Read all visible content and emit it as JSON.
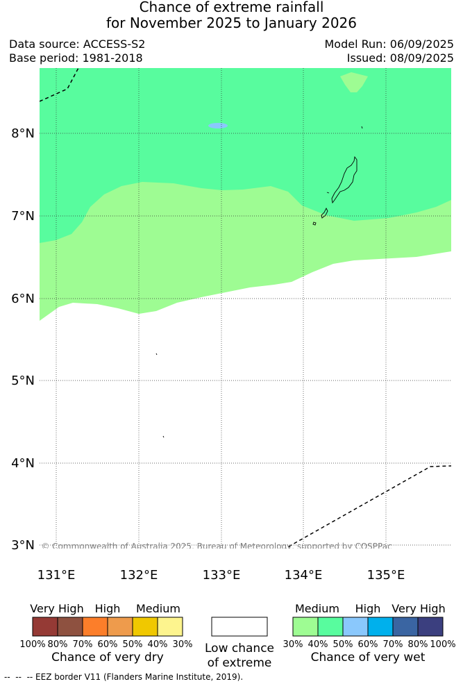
{
  "title": {
    "line1": "Chance of extreme rainfall",
    "line2": "for November 2025 to January 2026"
  },
  "meta": {
    "data_source": "Data source: ACCESS-S2",
    "base_period": "Base period: 1981-2018",
    "model_run": "Model Run: 06/09/2025",
    "issued": "Issued: 08/09/2025"
  },
  "map": {
    "lat_labels": [
      "8°N",
      "7°N",
      "6°N",
      "5°N",
      "4°N",
      "3°N"
    ],
    "lon_labels": [
      "131°E",
      "132°E",
      "133°E",
      "134°E",
      "135°E"
    ],
    "copyright": "© Commonwealth of Australia 2025, Bureau of Meteorology, supported by COSPPac",
    "colors": {
      "wet_40_50": "#58fc9e",
      "wet_30_40": "#9efc93",
      "wet_50_60": "#8ac8fc"
    }
  },
  "legend": {
    "dry": {
      "categories": [
        "Very High",
        "High",
        "Medium"
      ],
      "colors": [
        "#953a35",
        "#8e5140",
        "#fc7e2a",
        "#ee9b4c",
        "#f0c800",
        "#fdf48e"
      ],
      "ticks": [
        "100%",
        "80%",
        "70%",
        "60%",
        "50%",
        "40%",
        "30%"
      ],
      "caption": "Chance of very dry"
    },
    "neutral": {
      "caption_line1": "Low chance",
      "caption_line2": "of extreme",
      "color": "#ffffff"
    },
    "wet": {
      "categories": [
        "Medium",
        "High",
        "Very High"
      ],
      "colors": [
        "#9efc93",
        "#58fc9e",
        "#8ac8fc",
        "#00b0ec",
        "#3a65a2",
        "#3b3f7f"
      ],
      "ticks": [
        "30%",
        "40%",
        "50%",
        "60%",
        "70%",
        "80%",
        "100%"
      ],
      "caption": "Chance of very wet"
    }
  },
  "footer": {
    "eez_note": "--  --  -- EEZ border V11 (Flanders Marine Institute, 2019)."
  }
}
